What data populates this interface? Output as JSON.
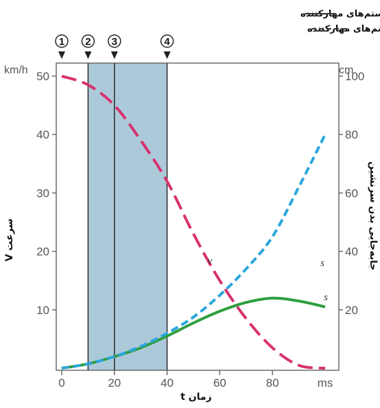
{
  "chart_data": {
    "type": "line",
    "xlabel": "زمان t",
    "x_unit": "ms",
    "xlim": [
      0,
      100
    ],
    "x_ticks": [
      "0",
      "20",
      "40",
      "60",
      "80",
      "ms"
    ],
    "y_left": {
      "label": "سرعت V",
      "unit": "km/h",
      "lim": [
        0,
        55
      ],
      "ticks": [
        "10",
        "20",
        "30",
        "40",
        "50"
      ]
    },
    "y_right": {
      "label": "جابه‌جایی بدن سرنشین",
      "unit": "cm",
      "lim": [
        0,
        110
      ],
      "ticks": [
        "20",
        "40",
        "60",
        "80",
        "100"
      ]
    },
    "legend": [
      {
        "label": "با سیستم‌های مهارکننده",
        "style": "solid"
      },
      {
        "label": "بدون سیستم‌های مهارکننده",
        "style": "dashed"
      }
    ],
    "legend_placement": "top-right",
    "phases": {
      "markers": [
        {
          "label": "1",
          "x": 0
        },
        {
          "label": "2",
          "x": 10
        },
        {
          "label": "3",
          "x": 20
        },
        {
          "label": "4",
          "x": 40
        }
      ],
      "shaded_range": [
        10,
        40
      ],
      "shade_color": "#9dbfd3"
    },
    "series": [
      {
        "label": "v",
        "axis": "left",
        "style": "dashed",
        "color": "#d8316f",
        "x": [
          0,
          10,
          20,
          30,
          40,
          50,
          60,
          70,
          80,
          90,
          100
        ],
        "y": [
          50,
          48.5,
          45,
          39,
          32,
          23,
          15,
          8.5,
          3.5,
          0.5,
          0
        ]
      },
      {
        "label": "s",
        "axis": "right",
        "style": "dashed",
        "color": "#2aa7dc",
        "x": [
          0,
          10,
          20,
          30,
          40,
          50,
          60,
          70,
          80,
          90,
          100
        ],
        "y": [
          0,
          1.5,
          4,
          7.5,
          12,
          17.5,
          25,
          34,
          45,
          62,
          80
        ]
      },
      {
        "label": "s",
        "axis": "right",
        "style": "solid",
        "color": "#2e9e3f",
        "x": [
          0,
          10,
          20,
          30,
          40,
          50,
          60,
          70,
          80,
          90,
          100
        ],
        "y": [
          0,
          1.5,
          4,
          7,
          11,
          15.5,
          19.5,
          22.5,
          24,
          23,
          21
        ]
      }
    ]
  }
}
